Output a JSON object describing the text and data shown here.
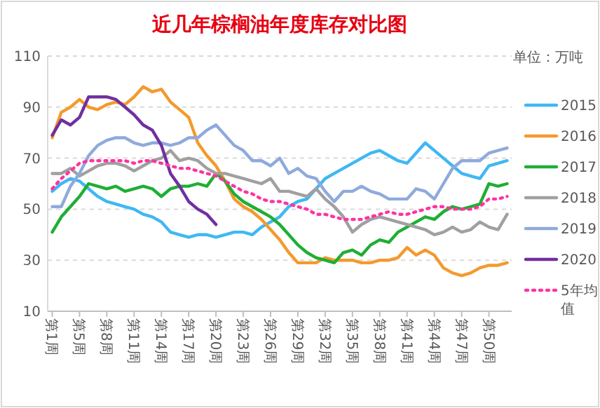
{
  "chart_data": {
    "type": "line",
    "title": "近几年棕榈油年度库存对比图",
    "annotations": [
      "单位：万吨"
    ],
    "categories": [
      "第1周",
      null,
      null,
      "第5周",
      null,
      null,
      "第8周",
      null,
      null,
      "第11周",
      null,
      null,
      "第14周",
      null,
      null,
      "第17周",
      null,
      null,
      "第20周",
      null,
      null,
      "第23周",
      null,
      null,
      "第26周",
      null,
      null,
      "第29周",
      null,
      null,
      "第32周",
      null,
      null,
      "第35周",
      null,
      null,
      "第38周",
      null,
      null,
      "第41周",
      null,
      null,
      "第44周",
      null,
      null,
      "第47周",
      null,
      null,
      "第50周",
      null,
      null
    ],
    "ylim": [
      10,
      110
    ],
    "yticks": [
      10,
      30,
      50,
      70,
      90,
      110
    ],
    "grid": "y",
    "legend": "right",
    "series": [
      {
        "name": "2015",
        "color": "#3fb8f4",
        "values": [
          57,
          60,
          62,
          61,
          58,
          55,
          53,
          52,
          51,
          50,
          48,
          47,
          45,
          41,
          40,
          39,
          40,
          40,
          39,
          40,
          41,
          41,
          40,
          43,
          45,
          47,
          51,
          53,
          54,
          58,
          62,
          64,
          66,
          68,
          70,
          72,
          73,
          71,
          69,
          68,
          72,
          76,
          73,
          70,
          67,
          64,
          63,
          62,
          67,
          68,
          69
        ]
      },
      {
        "name": "2016",
        "color": "#f39a2d",
        "values": [
          78,
          88,
          90,
          93,
          90,
          89,
          91,
          92,
          91,
          94,
          98,
          96,
          97,
          92,
          89,
          86,
          76,
          71,
          67,
          61,
          54,
          51,
          49,
          46,
          42,
          38,
          33,
          29,
          29,
          29,
          31,
          30,
          30,
          30,
          29,
          29,
          30,
          30,
          31,
          35,
          32,
          34,
          32,
          27,
          25,
          24,
          25,
          27,
          28,
          28,
          29
        ]
      },
      {
        "name": "2017",
        "color": "#1fae34",
        "values": [
          41,
          47,
          51,
          55,
          60,
          59,
          58,
          59,
          57,
          58,
          59,
          58,
          55,
          58,
          59,
          59,
          60,
          59,
          64,
          61,
          56,
          53,
          51,
          49,
          47,
          44,
          40,
          36,
          33,
          31,
          30,
          29,
          33,
          34,
          32,
          36,
          38,
          37,
          41,
          43,
          45,
          47,
          46,
          49,
          51,
          50,
          51,
          52,
          60,
          59,
          60
        ]
      },
      {
        "name": "2018",
        "color": "#a0a0a0",
        "values": [
          64,
          64,
          66,
          63,
          65,
          67,
          68,
          68,
          67,
          65,
          67,
          69,
          70,
          73,
          69,
          70,
          69,
          66,
          64,
          64,
          63,
          62,
          61,
          60,
          62,
          57,
          57,
          56,
          55,
          58,
          54,
          51,
          47,
          41,
          44,
          46,
          47,
          46,
          45,
          44,
          43,
          42,
          40,
          41,
          43,
          41,
          42,
          45,
          43,
          42,
          48
        ]
      },
      {
        "name": "2019",
        "color": "#8faadc",
        "values": [
          51,
          51,
          59,
          64,
          71,
          75,
          77,
          78,
          78,
          76,
          75,
          76,
          76,
          75,
          76,
          78,
          78,
          81,
          83,
          79,
          75,
          73,
          69,
          69,
          67,
          70,
          64,
          66,
          63,
          62,
          57,
          53,
          57,
          57,
          59,
          57,
          56,
          54,
          54,
          54,
          58,
          57,
          54,
          60,
          66,
          69,
          69,
          69,
          72,
          73,
          74
        ]
      },
      {
        "name": "2020",
        "color": "#7030a0",
        "values": [
          79,
          85,
          83,
          86,
          94,
          94,
          94,
          93,
          90,
          87,
          83,
          81,
          75,
          64,
          59,
          53,
          50,
          48,
          44,
          null,
          null,
          null,
          null,
          null,
          null,
          null,
          null,
          null,
          null,
          null,
          null,
          null,
          null,
          null,
          null,
          null,
          null,
          null,
          null,
          null,
          null,
          null,
          null,
          null,
          null,
          null,
          null,
          null,
          null,
          null,
          null
        ]
      },
      {
        "name": "5年均值",
        "color": "#ff33a0",
        "line_style": "dotted",
        "values": [
          58,
          62,
          65,
          68,
          69,
          69,
          69,
          69,
          69,
          68,
          69,
          69,
          68,
          67,
          66,
          66,
          65,
          64,
          63,
          61,
          59,
          57,
          56,
          54,
          53,
          53,
          52,
          51,
          50,
          48,
          48,
          47,
          46,
          46,
          46,
          47,
          48,
          49,
          48,
          48,
          49,
          50,
          51,
          51,
          50,
          50,
          50,
          51,
          54,
          54,
          55
        ]
      }
    ]
  }
}
